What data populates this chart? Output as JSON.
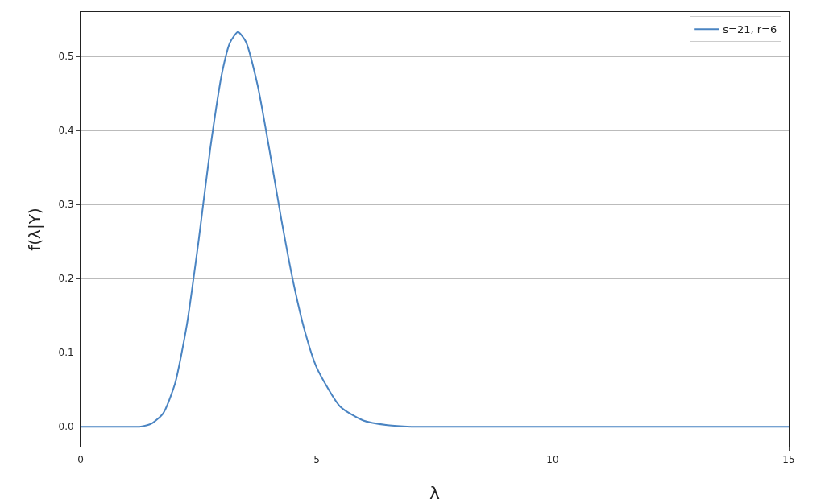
{
  "chart_data": {
    "type": "line",
    "xlabel": "λ",
    "ylabel": "f(λ|Y)",
    "series": [
      {
        "name": "s=21, r=6",
        "color": "#4a84c2",
        "x": [
          0,
          0.5,
          1,
          1.25,
          1.5,
          1.75,
          2,
          2.25,
          2.5,
          2.75,
          3,
          3.1667,
          3.3333,
          3.5,
          3.75,
          4,
          4.25,
          4.5,
          4.75,
          5,
          5.5,
          6,
          6.5,
          7,
          8,
          10,
          15
        ],
        "values": [
          0,
          0,
          0,
          0,
          0.004,
          0.018,
          0.058,
          0.137,
          0.251,
          0.377,
          0.479,
          0.519,
          0.533,
          0.52,
          0.461,
          0.374,
          0.281,
          0.197,
          0.129,
          0.08,
          0.027,
          0.008,
          0.002,
          0,
          0,
          0,
          0
        ]
      }
    ],
    "xlim": [
      0,
      15
    ],
    "xticks": [
      0,
      5,
      10,
      15
    ],
    "ylim": [
      -0.027,
      0.56
    ],
    "yticks": [
      {
        "value": 0,
        "label": "0.0"
      },
      0.1,
      0.2,
      0.3,
      0.4,
      0.5
    ],
    "grid": true,
    "legend": "top right",
    "line_style": "solid",
    "marker": "none"
  }
}
